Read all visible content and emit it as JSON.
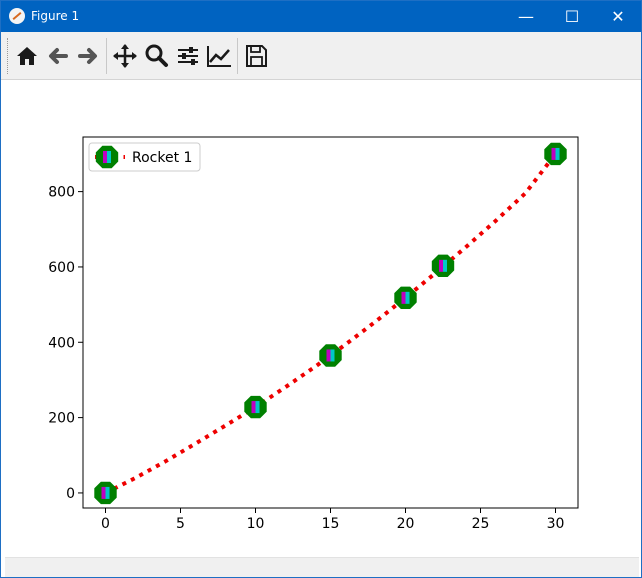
{
  "window": {
    "title": "Figure 1",
    "buttons": {
      "minimize": "—",
      "maximize": "☐",
      "close": "✕"
    }
  },
  "toolbar": {
    "tools": [
      {
        "name": "home",
        "icon": "home-icon"
      },
      {
        "name": "back",
        "icon": "arrow-left-icon"
      },
      {
        "name": "forward",
        "icon": "arrow-right-icon"
      },
      {
        "name": "pan",
        "icon": "move-icon"
      },
      {
        "name": "zoom",
        "icon": "magnifier-icon"
      },
      {
        "name": "configure-subplots",
        "icon": "sliders-icon"
      },
      {
        "name": "edit-axes",
        "icon": "line-chart-icon"
      },
      {
        "name": "save",
        "icon": "floppy-disk-icon"
      }
    ]
  },
  "colors": {
    "line": "#ee0000",
    "marker_edge": "#008000",
    "marker_fill_left": "#c000c0",
    "marker_fill_right": "#00c8c8",
    "axes": "#000000"
  },
  "chart_data": {
    "type": "line",
    "title": "",
    "xlabel": "",
    "ylabel": "",
    "xlim": [
      -1.5,
      31.5
    ],
    "ylim": [
      -40,
      945
    ],
    "xticks": [
      0,
      5,
      10,
      15,
      20,
      25,
      30
    ],
    "yticks": [
      0,
      200,
      400,
      600,
      800
    ],
    "grid": false,
    "legend_position": "top-left",
    "line_style": "dotted",
    "series": [
      {
        "name": "Rocket 1",
        "marker": "octagon",
        "curve_x": [
          0,
          2,
          4,
          6,
          8,
          10,
          12,
          14,
          16,
          18,
          20,
          22,
          24,
          26,
          28,
          30
        ],
        "curve_y": [
          0,
          40,
          84,
          131,
          179,
          228,
          281,
          336,
          394,
          455,
          518,
          584,
          652,
          722,
          796,
          900
        ],
        "points": [
          {
            "x": 0,
            "y": 0
          },
          {
            "x": 10,
            "y": 228
          },
          {
            "x": 15,
            "y": 365
          },
          {
            "x": 20,
            "y": 518
          },
          {
            "x": 22.5,
            "y": 603
          },
          {
            "x": 30,
            "y": 900
          }
        ]
      }
    ]
  }
}
